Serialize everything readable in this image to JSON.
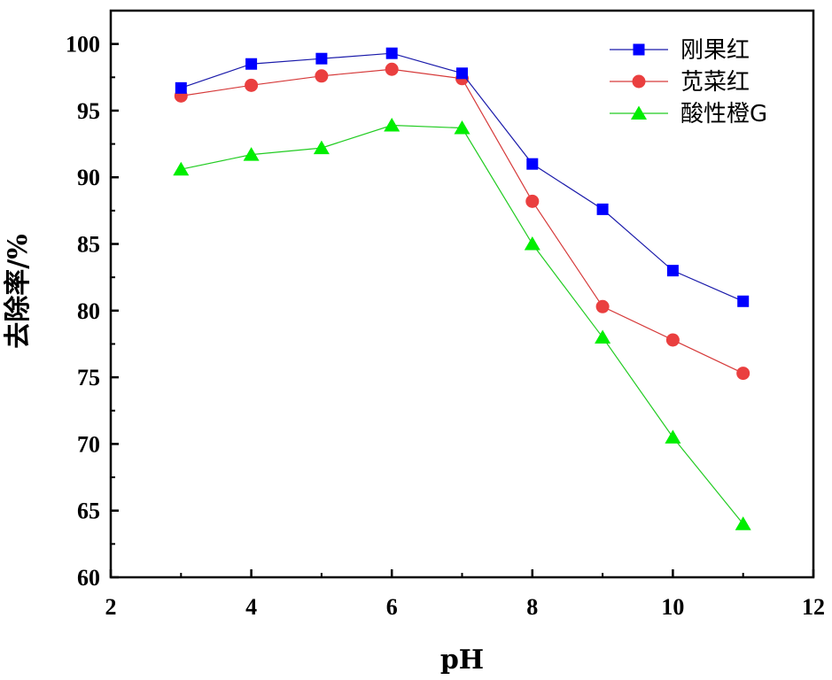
{
  "chart_data": {
    "type": "line",
    "title": "",
    "xlabel": "pH",
    "ylabel": "去除率/%",
    "xlim": [
      2,
      12
    ],
    "ylim": [
      60,
      102.5
    ],
    "x_ticks": [
      "2",
      "4",
      "6",
      "8",
      "10",
      "12"
    ],
    "y_ticks": [
      "60",
      "65",
      "70",
      "75",
      "80",
      "85",
      "90",
      "95",
      "100"
    ],
    "x": [
      3,
      4,
      5,
      6,
      7,
      8,
      9,
      10,
      11
    ],
    "legend_position": "top-right",
    "series": [
      {
        "name": "刚果红",
        "marker": "square",
        "color": "#0000ff",
        "line_color": "#1a1aaa",
        "values": [
          96.7,
          98.5,
          98.9,
          99.3,
          97.8,
          91.0,
          87.6,
          83.0,
          80.7
        ]
      },
      {
        "name": "苋菜红",
        "marker": "circle",
        "color": "#ea3f3f",
        "line_color": "#d63a3a",
        "values": [
          96.1,
          96.9,
          97.6,
          98.1,
          97.4,
          88.2,
          80.3,
          77.8,
          75.3
        ]
      },
      {
        "name": "酸性橙G",
        "marker": "triangle",
        "color": "#00ee00",
        "line_color": "#22cc22",
        "values": [
          90.6,
          91.7,
          92.2,
          93.9,
          93.7,
          85.0,
          78.0,
          70.5,
          64.0
        ]
      }
    ]
  }
}
